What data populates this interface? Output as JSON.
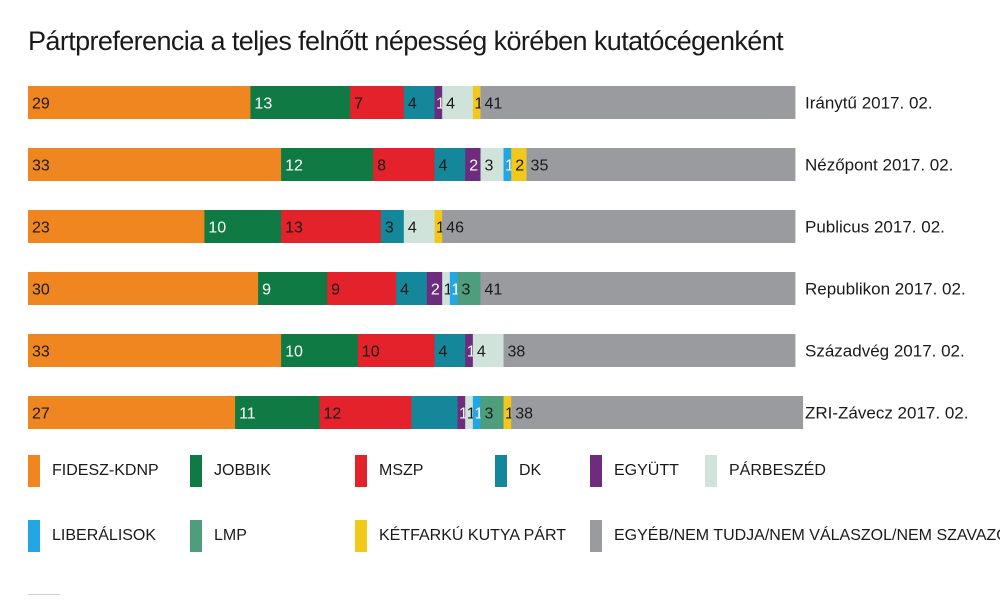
{
  "chart_data": {
    "type": "bar",
    "orientation": "horizontal",
    "stacked": true,
    "title": "Pártpreferencia a teljes felnőtt népesség körében kutatócégenként",
    "categories": [
      "Iránytű 2017. 02.",
      "Nézőpont 2017. 02.",
      "Publicus 2017. 02.",
      "Republikon 2017. 02.",
      "Századvég 2017. 02.",
      "ZRI-Závecz 2017. 02."
    ],
    "series": [
      {
        "name": "FIDESZ-KDNP",
        "color": "#f0861f",
        "label_color": "#1a1a1a",
        "values": [
          29,
          33,
          23,
          30,
          33,
          27
        ]
      },
      {
        "name": "JOBBIK",
        "color": "#0f7a43",
        "label_color": "#ffffff",
        "values": [
          13,
          12,
          10,
          9,
          10,
          11
        ]
      },
      {
        "name": "MSZP",
        "color": "#e3222c",
        "label_color": "#1a1a1a",
        "values": [
          7,
          8,
          13,
          9,
          10,
          12
        ]
      },
      {
        "name": "DK",
        "color": "#15879a",
        "label_color": "#1a1a1a",
        "values": [
          4,
          4,
          3,
          4,
          4,
          6
        ]
      },
      {
        "name": "EGYÜTT",
        "color": "#6d2c7e",
        "label_color": "#ffffff",
        "values": [
          1,
          2,
          0,
          2,
          1,
          1
        ]
      },
      {
        "name": "PÁRBESZÉD",
        "color": "#cfe3da",
        "label_color": "#1a1a1a",
        "values": [
          4,
          3,
          4,
          1,
          4,
          1
        ]
      },
      {
        "name": "LIBERÁLISOK",
        "color": "#22a6e4",
        "label_color": "#ffffff",
        "values": [
          0,
          1,
          0,
          1,
          0,
          1
        ]
      },
      {
        "name": "LMP",
        "color": "#4f9e7b",
        "label_color": "#1a1a1a",
        "values": [
          0,
          0,
          0,
          3,
          0,
          3
        ]
      },
      {
        "name": "KÉTFARKÚ KUTYA PÁRT",
        "color": "#f2c81b",
        "label_color": "#1a1a1a",
        "values": [
          1,
          2,
          1,
          0,
          0,
          1
        ]
      },
      {
        "name": "EGYÉB/NEM TUDJA/NEM VÁLASZOL/NEM SZAVAZÓ",
        "color": "#9a9b9f",
        "label_color": "#1a1a1a",
        "values": [
          41,
          35,
          46,
          41,
          38,
          38
        ]
      }
    ],
    "segment_labels": [
      [
        "29",
        "13",
        "7",
        "4",
        "1",
        "4",
        "",
        "",
        "1",
        "41"
      ],
      [
        "33",
        "12",
        "8",
        "4",
        "2",
        "3",
        "1",
        "",
        "2",
        "35"
      ],
      [
        "23",
        "10",
        "13",
        "3",
        "",
        "4",
        "",
        "",
        "1",
        "46"
      ],
      [
        "30",
        "9",
        "9",
        "4",
        "2",
        "1",
        "1",
        "3",
        "",
        "41"
      ],
      [
        "33",
        "10",
        "10",
        "4",
        "1",
        "4",
        "",
        "",
        "",
        "38"
      ],
      [
        "27",
        "11",
        "12",
        "",
        "1",
        "1",
        "1",
        "3",
        "1",
        "38"
      ]
    ],
    "xlim": [
      0,
      100
    ],
    "legend_position": "bottom",
    "grid": false
  }
}
